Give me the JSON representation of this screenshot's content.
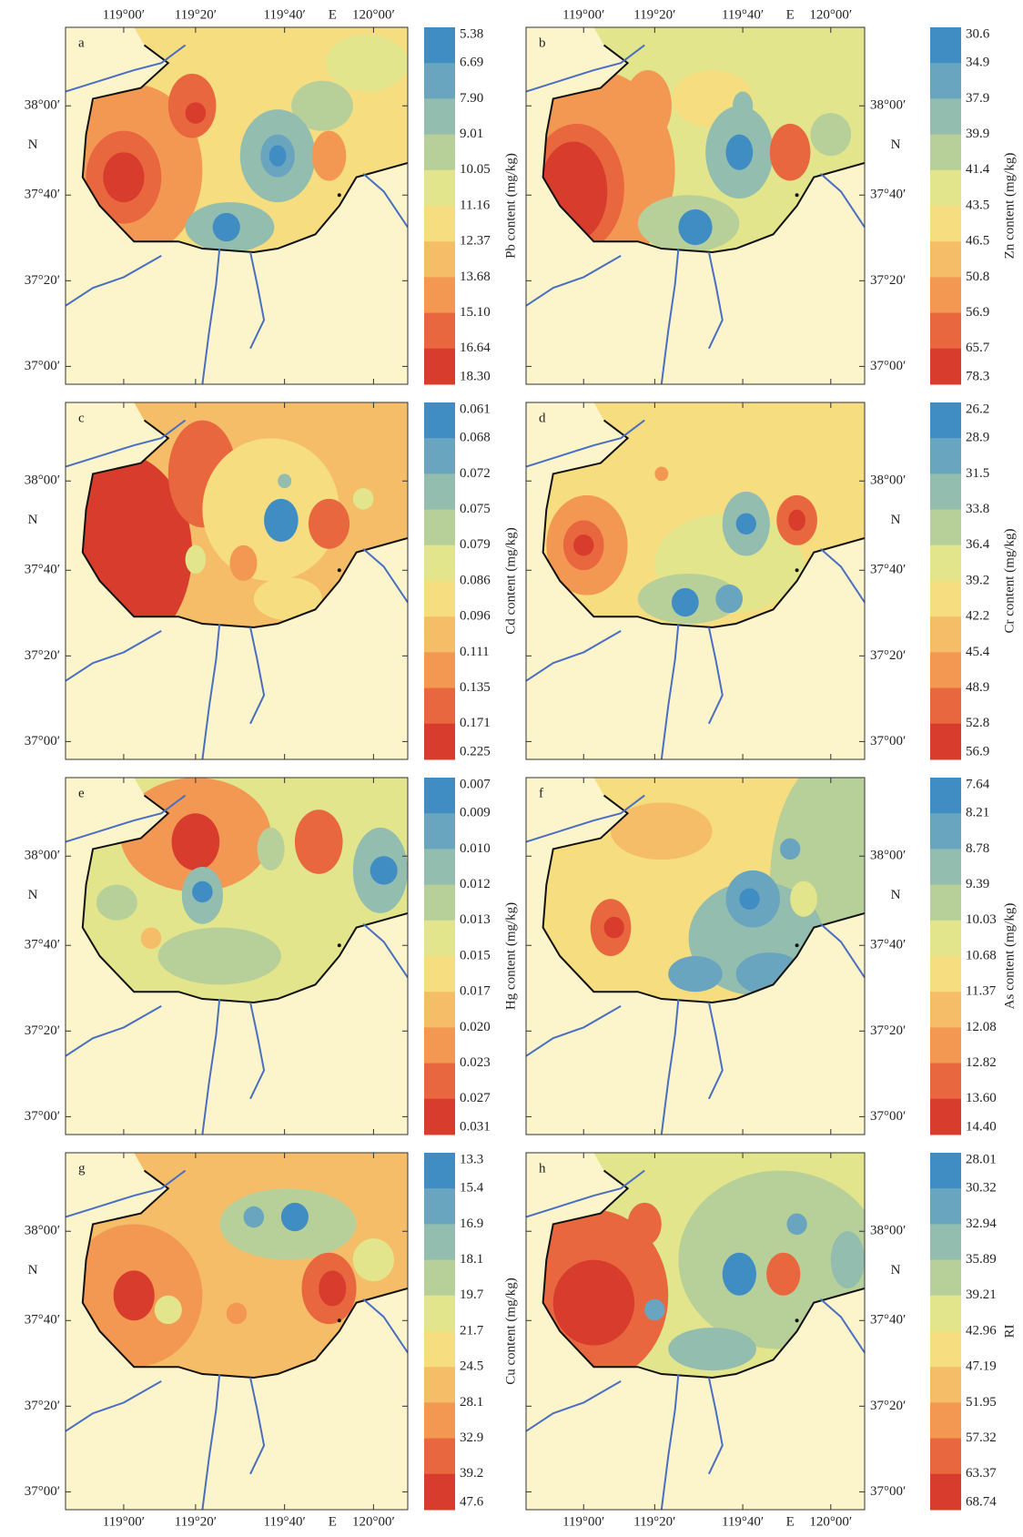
{
  "longitude_labels": [
    "119°00′",
    "119°20′",
    "119°40′",
    "120°00′"
  ],
  "east_label": "E",
  "latitude_labels": [
    "38°00′",
    "37°40′",
    "37°20′",
    "37°00′"
  ],
  "north_label": "N",
  "colorbar_colors": [
    "#3f8dc2",
    "#6aa5bf",
    "#93bdaf",
    "#b7cf99",
    "#e2e58c",
    "#f5dd80",
    "#f6bd68",
    "#f39853",
    "#e8673e",
    "#d83c2c"
  ],
  "panels": [
    {
      "letter": "a",
      "colorbar_title": "Pb content (mg/kg)",
      "colorbar_labels": [
        "5.38",
        "6.69",
        "7.90",
        "9.01",
        "10.05",
        "11.16",
        "12.37",
        "13.68",
        "15.10",
        "16.64",
        "18.30"
      ]
    },
    {
      "letter": "b",
      "colorbar_title": "Zn content (mg/kg)",
      "colorbar_labels": [
        "30.6",
        "34.9",
        "37.9",
        "39.9",
        "41.4",
        "43.5",
        "46.5",
        "50.8",
        "56.9",
        "65.7",
        "78.3"
      ]
    },
    {
      "letter": "c",
      "colorbar_title": "Cd content (mg/kg)",
      "colorbar_labels": [
        "0.061",
        "0.068",
        "0.072",
        "0.075",
        "0.079",
        "0.086",
        "0.096",
        "0.111",
        "0.135",
        "0.171",
        "0.225"
      ]
    },
    {
      "letter": "d",
      "colorbar_title": "Cr content (mg/kg)",
      "colorbar_labels": [
        "26.2",
        "28.9",
        "31.5",
        "33.8",
        "36.4",
        "39.2",
        "42.2",
        "45.4",
        "48.9",
        "52.8",
        "56.9"
      ]
    },
    {
      "letter": "e",
      "colorbar_title": "Hg content (mg/kg)",
      "colorbar_labels": [
        "0.007",
        "0.009",
        "0.010",
        "0.012",
        "0.013",
        "0.015",
        "0.017",
        "0.020",
        "0.023",
        "0.027",
        "0.031"
      ]
    },
    {
      "letter": "f",
      "colorbar_title": "As content (mg/kg)",
      "colorbar_labels": [
        "7.64",
        "8.21",
        "8.78",
        "9.39",
        "10.03",
        "10.68",
        "11.37",
        "12.08",
        "12.82",
        "13.60",
        "14.40"
      ]
    },
    {
      "letter": "g",
      "colorbar_title": "Cu content (mg/kg)",
      "colorbar_labels": [
        "13.3",
        "15.4",
        "16.9",
        "18.1",
        "19.7",
        "21.7",
        "24.5",
        "28.1",
        "32.9",
        "39.2",
        "47.6"
      ]
    },
    {
      "letter": "h",
      "colorbar_title": "RI",
      "colorbar_labels": [
        "28.01",
        "30.32",
        "32.94",
        "35.89",
        "39.21",
        "42.96",
        "47.19",
        "51.95",
        "57.32",
        "63.37",
        "68.74"
      ]
    }
  ]
}
